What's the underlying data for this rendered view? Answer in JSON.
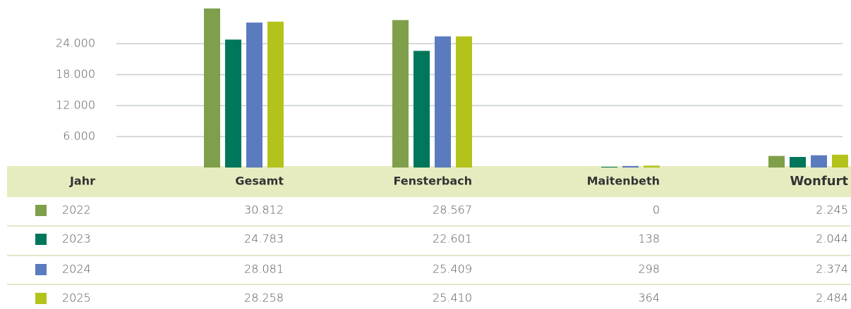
{
  "chart_data": {
    "type": "bar",
    "row_header": "Jahr",
    "categories": [
      "Gesamt",
      "Fensterbach",
      "Maitenbeth",
      "Wonfurt"
    ],
    "series": [
      {
        "name": "2022",
        "color": "#7f9f4a",
        "values": [
          30812,
          28567,
          0,
          2245
        ],
        "value_labels": [
          "30.812",
          "28.567",
          "0",
          "2.245"
        ]
      },
      {
        "name": "2023",
        "color": "#00775a",
        "values": [
          24783,
          22601,
          138,
          2044
        ],
        "value_labels": [
          "24.783",
          "22.601",
          "138",
          "2.044"
        ]
      },
      {
        "name": "2024",
        "color": "#5b7bbf",
        "values": [
          28081,
          25409,
          298,
          2374
        ],
        "value_labels": [
          "28.081",
          "25.409",
          "298",
          "2.374"
        ]
      },
      {
        "name": "2025",
        "color": "#b4c31b",
        "values": [
          28258,
          25410,
          364,
          2484
        ],
        "value_labels": [
          "28.258",
          "25.410",
          "364",
          "2.484"
        ]
      }
    ],
    "ylim": [
      0,
      32000
    ],
    "yticks": [
      {
        "value": 6000,
        "label": "6.000"
      },
      {
        "value": 12000,
        "label": "12.000"
      },
      {
        "value": 18000,
        "label": "18.000"
      },
      {
        "value": 24000,
        "label": "24.000"
      }
    ],
    "grid": true
  }
}
